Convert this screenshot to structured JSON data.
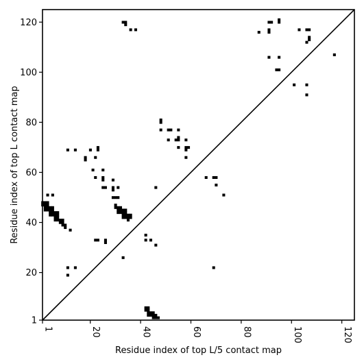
{
  "chart_data": {
    "type": "scatter",
    "title": "",
    "xlabel": "Residue index of top L/5 contact map",
    "ylabel": "Residue index of top L contact map",
    "xlim": [
      1,
      125
    ],
    "ylim": [
      1,
      125
    ],
    "xticks": [
      1,
      20,
      40,
      60,
      80,
      100,
      120
    ],
    "yticks": [
      1,
      20,
      40,
      60,
      80,
      100,
      120
    ],
    "grid": false,
    "legend": "none",
    "marker": "square",
    "marker_color": "#000000",
    "diagonal": true,
    "series": [
      {
        "points_below_diagonal": [
          [
            1,
            48
          ],
          [
            2,
            48
          ],
          [
            3,
            48
          ],
          [
            1,
            47
          ],
          [
            2,
            47
          ],
          [
            3,
            47
          ],
          [
            2,
            46
          ],
          [
            3,
            46
          ],
          [
            4,
            46
          ],
          [
            5,
            46
          ],
          [
            2,
            45
          ],
          [
            3,
            45
          ],
          [
            4,
            45
          ],
          [
            5,
            45
          ],
          [
            4,
            44
          ],
          [
            5,
            44
          ],
          [
            6,
            44
          ],
          [
            7,
            44
          ],
          [
            4,
            43
          ],
          [
            5,
            43
          ],
          [
            6,
            43
          ],
          [
            7,
            43
          ],
          [
            6,
            42
          ],
          [
            7,
            42
          ],
          [
            6,
            41
          ],
          [
            7,
            41
          ],
          [
            8,
            41
          ],
          [
            9,
            41
          ],
          [
            8,
            40
          ],
          [
            9,
            40
          ],
          [
            9,
            39
          ],
          [
            10,
            39
          ],
          [
            10,
            38
          ],
          [
            12,
            37
          ],
          [
            3,
            51
          ],
          [
            5,
            51
          ],
          [
            11,
            69
          ],
          [
            14,
            69
          ],
          [
            18,
            66
          ],
          [
            18,
            65
          ],
          [
            21,
            61
          ],
          [
            22,
            58
          ],
          [
            20,
            69
          ],
          [
            23,
            70
          ],
          [
            23,
            69
          ],
          [
            22,
            66
          ],
          [
            25,
            61
          ],
          [
            25,
            58
          ],
          [
            25,
            57
          ],
          [
            25,
            54
          ],
          [
            26,
            54
          ],
          [
            29,
            57
          ],
          [
            29,
            54
          ],
          [
            29,
            53
          ],
          [
            31,
            54
          ],
          [
            29,
            50
          ],
          [
            30,
            50
          ],
          [
            31,
            50
          ],
          [
            30,
            47
          ],
          [
            30,
            46
          ],
          [
            31,
            46
          ],
          [
            32,
            46
          ],
          [
            31,
            45
          ],
          [
            32,
            45
          ],
          [
            31,
            44
          ],
          [
            32,
            44
          ],
          [
            33,
            45
          ],
          [
            34,
            45
          ],
          [
            33,
            44
          ],
          [
            34,
            44
          ],
          [
            33,
            43
          ],
          [
            34,
            43
          ],
          [
            35,
            43
          ],
          [
            36,
            43
          ],
          [
            33,
            42
          ],
          [
            34,
            42
          ],
          [
            35,
            42
          ],
          [
            36,
            42
          ],
          [
            35,
            41
          ],
          [
            22,
            33
          ],
          [
            23,
            33
          ],
          [
            26,
            33
          ],
          [
            26,
            32
          ],
          [
            33,
            26
          ],
          [
            11,
            22
          ],
          [
            14,
            22
          ],
          [
            11,
            19
          ],
          [
            42,
            35
          ],
          [
            42,
            33
          ],
          [
            44,
            33
          ],
          [
            46,
            54
          ],
          [
            46,
            31
          ],
          [
            42,
            6
          ],
          [
            43,
            6
          ],
          [
            42,
            5
          ],
          [
            43,
            5
          ],
          [
            43,
            4
          ],
          [
            44,
            4
          ],
          [
            45,
            4
          ],
          [
            43,
            3
          ],
          [
            44,
            3
          ],
          [
            45,
            3
          ],
          [
            46,
            3
          ],
          [
            45,
            2
          ],
          [
            46,
            2
          ],
          [
            47,
            2
          ],
          [
            48,
            81
          ],
          [
            48,
            80
          ],
          [
            48,
            77
          ],
          [
            51,
            77
          ],
          [
            52,
            77
          ],
          [
            55,
            77
          ],
          [
            51,
            73
          ],
          [
            54,
            73
          ],
          [
            55,
            73
          ],
          [
            55,
            74
          ],
          [
            58,
            73
          ],
          [
            55,
            70
          ],
          [
            58,
            70
          ],
          [
            59,
            70
          ],
          [
            58,
            69
          ],
          [
            58,
            66
          ],
          [
            66,
            58
          ],
          [
            69,
            58
          ],
          [
            70,
            58
          ],
          [
            70,
            55
          ],
          [
            73,
            51
          ],
          [
            69,
            22
          ]
        ],
        "points_above_diagonal": [
          [
            33,
            120
          ],
          [
            34,
            120
          ],
          [
            34,
            119
          ],
          [
            36,
            117
          ],
          [
            38,
            117
          ],
          [
            87,
            116
          ],
          [
            91,
            117
          ],
          [
            91,
            116
          ],
          [
            91,
            120
          ],
          [
            92,
            120
          ],
          [
            95,
            121
          ],
          [
            95,
            120
          ],
          [
            103,
            117
          ],
          [
            106,
            117
          ],
          [
            107,
            117
          ],
          [
            107,
            114
          ],
          [
            107,
            113
          ],
          [
            106,
            112
          ],
          [
            91,
            106
          ],
          [
            95,
            106
          ],
          [
            94,
            101
          ],
          [
            95,
            101
          ],
          [
            101,
            95
          ],
          [
            106,
            95
          ],
          [
            106,
            91
          ],
          [
            117,
            107
          ]
        ]
      }
    ]
  }
}
